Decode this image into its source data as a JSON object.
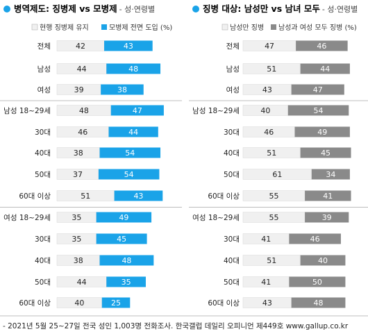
{
  "colors": {
    "accent": "#1aa3e8",
    "gray_bar": "#f0f0f0",
    "dark_gray_bar": "#8a8a8a",
    "separator": "#bdbdbd"
  },
  "chart_data": [
    {
      "type": "bar",
      "title": "병역제도: 징병제 vs 모병제",
      "subtitle": "- 성·연령별",
      "legend": [
        "현행 징병제 유지",
        "모병제 전면 도입 (%)"
      ],
      "categories": [
        "전체",
        "남성",
        "여성",
        "남성 18~29세",
        "30대",
        "40대",
        "50대",
        "60대 이상",
        "여성 18~29세",
        "30대",
        "40대",
        "50대",
        "60대 이상"
      ],
      "groups": [
        1,
        3,
        8
      ],
      "series": [
        {
          "name": "현행 징병제 유지",
          "values": [
            42,
            44,
            39,
            48,
            46,
            38,
            37,
            51,
            35,
            35,
            38,
            44,
            40
          ]
        },
        {
          "name": "모병제 전면 도입 (%)",
          "values": [
            43,
            48,
            38,
            47,
            44,
            54,
            54,
            43,
            49,
            45,
            48,
            35,
            25
          ]
        }
      ]
    },
    {
      "type": "bar",
      "title": "징병 대상: 남성만 vs 남녀 모두",
      "subtitle": "- 성·연령별",
      "legend": [
        "남성만 징병",
        "남성과 여성 모두 징병 (%)"
      ],
      "categories": [
        "전체",
        "남성",
        "여성",
        "남성 18~29세",
        "30대",
        "40대",
        "50대",
        "60대 이상",
        "여성 18~29세",
        "30대",
        "40대",
        "50대",
        "60대 이상"
      ],
      "groups": [
        1,
        3,
        8
      ],
      "series": [
        {
          "name": "남성만 징병",
          "values": [
            47,
            51,
            43,
            40,
            46,
            51,
            61,
            55,
            55,
            41,
            51,
            41,
            43
          ]
        },
        {
          "name": "남성과 여성 모두 징병 (%)",
          "values": [
            46,
            44,
            47,
            54,
            49,
            45,
            34,
            41,
            39,
            46,
            40,
            50,
            48
          ]
        }
      ]
    }
  ],
  "footer": "- 2021년 5월 25~27일 전국 성인 1,003명 전화조사. 한국갤럽 데일리 오피니언 제449호 www.gallup.co.kr"
}
